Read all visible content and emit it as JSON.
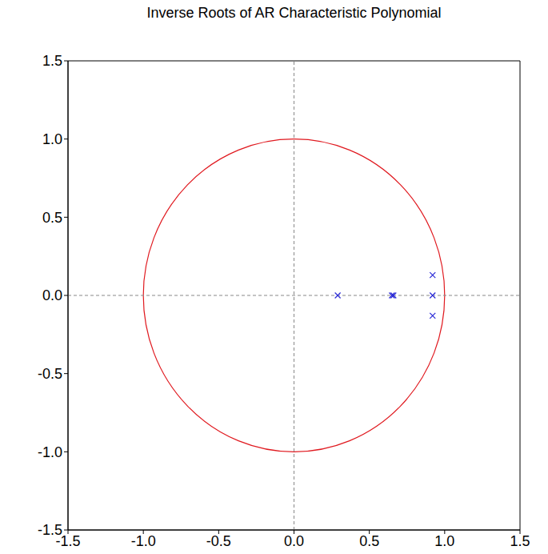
{
  "chart_data": {
    "type": "scatter",
    "title": "Inverse Roots of AR Characteristic Polynomial",
    "x": [
      0.29,
      0.65,
      0.66,
      0.92,
      0.92,
      0.92
    ],
    "y": [
      0.0,
      0.0,
      0.0,
      0.13,
      0.0,
      -0.13
    ],
    "color": "#2b2bd6",
    "marker": "x",
    "xlim": [
      -1.5,
      1.5
    ],
    "ylim": [
      -1.5,
      1.5
    ],
    "xticks": [
      {
        "value": -1.5,
        "label": "-1.5"
      },
      {
        "value": -1.0,
        "label": "-1.0"
      },
      {
        "value": -0.5,
        "label": "-0.5"
      },
      {
        "value": 0,
        "label": "0.0"
      },
      {
        "value": 0.5,
        "label": "0.5"
      },
      {
        "value": 1.0,
        "label": "1.0"
      },
      {
        "value": 1.5,
        "label": "1.5"
      }
    ],
    "yticks": [
      {
        "value": -1.5,
        "label": "-1.5"
      },
      {
        "value": -1.0,
        "label": "-1.0"
      },
      {
        "value": -0.5,
        "label": "-0.5"
      },
      {
        "value": 0,
        "label": "0.0"
      },
      {
        "value": 0.5,
        "label": "0.5"
      },
      {
        "value": 1.0,
        "label": "1.0"
      },
      {
        "value": 1.5,
        "label": "1.5"
      }
    ],
    "circle": {
      "center": [
        0,
        0
      ],
      "radius": 1,
      "color": "#e0191f"
    },
    "reference_lines": {
      "x": [
        0
      ],
      "y": [
        0
      ]
    },
    "grid": false
  }
}
